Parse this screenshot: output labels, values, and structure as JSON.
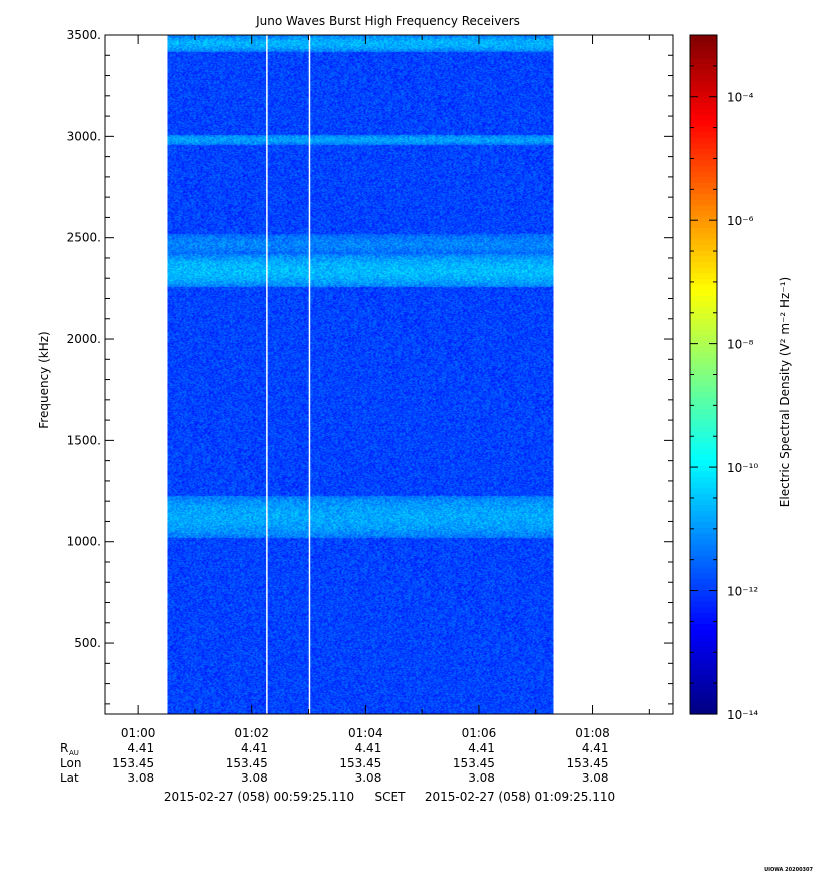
{
  "chart_data": {
    "type": "heatmap",
    "title": "Juno Waves Burst High Frequency Receivers",
    "ylabel": "Frequency (kHz)",
    "ylim": [
      150,
      3500
    ],
    "ytick_values": [
      500,
      1000,
      1500,
      2000,
      2500,
      3000,
      3500
    ],
    "ytick_labels": [
      "500.",
      "1000.",
      "1500.",
      "2000.",
      "2500.",
      "3000.",
      "3500."
    ],
    "xlim_minutes": [
      0.0,
      10.0
    ],
    "xtick_labels": [
      "01:00",
      "01:02",
      "01:04",
      "01:06",
      "01:08"
    ],
    "xtick_minutes": [
      0.5833,
      2.5833,
      4.5833,
      6.5833,
      8.5833
    ],
    "data_coverage_minutes": [
      1.1,
      7.9
    ],
    "gap_lines_minutes": [
      2.85,
      3.6
    ],
    "background_log_level": -11.9,
    "bands": [
      {
        "low_khz": 3420,
        "high_khz": 3500,
        "log_level": -10.7
      },
      {
        "low_khz": 2960,
        "high_khz": 3010,
        "log_level": -10.9
      },
      {
        "low_khz": 2420,
        "high_khz": 2520,
        "log_level": -11.2
      },
      {
        "low_khz": 2260,
        "high_khz": 2420,
        "log_level": -10.6
      },
      {
        "low_khz": 1020,
        "high_khz": 1230,
        "log_level": -10.8
      }
    ],
    "colorbar": {
      "label": "Electric Spectral Density (V² m⁻² Hz⁻¹)",
      "log_min": -14,
      "log_max": -3.0,
      "ticks": [
        {
          "label": "10⁻¹⁴",
          "log": -14
        },
        {
          "label": "10⁻¹²",
          "log": -12
        },
        {
          "label": "10⁻¹⁰",
          "log": -10
        },
        {
          "label": "10⁻⁸",
          "log": -8
        },
        {
          "label": "10⁻⁶",
          "log": -6
        },
        {
          "label": "10⁻⁴",
          "log": -4
        }
      ]
    },
    "ephemeris": {
      "row_labels": [
        "R",
        "Lon",
        "Lat"
      ],
      "r_subscript": "AU",
      "rows": [
        [
          "4.41",
          "4.41",
          "4.41",
          "4.41",
          "4.41"
        ],
        [
          "153.45",
          "153.45",
          "153.45",
          "153.45",
          "153.45"
        ],
        [
          "3.08",
          "3.08",
          "3.08",
          "3.08",
          "3.08"
        ]
      ]
    },
    "time_range": {
      "start": "2015-02-27 (058) 00:59:25.110",
      "label": "SCET",
      "end": "2015-02-27 (058) 01:09:25.110"
    },
    "stamp": "UIOWA 20200307"
  }
}
